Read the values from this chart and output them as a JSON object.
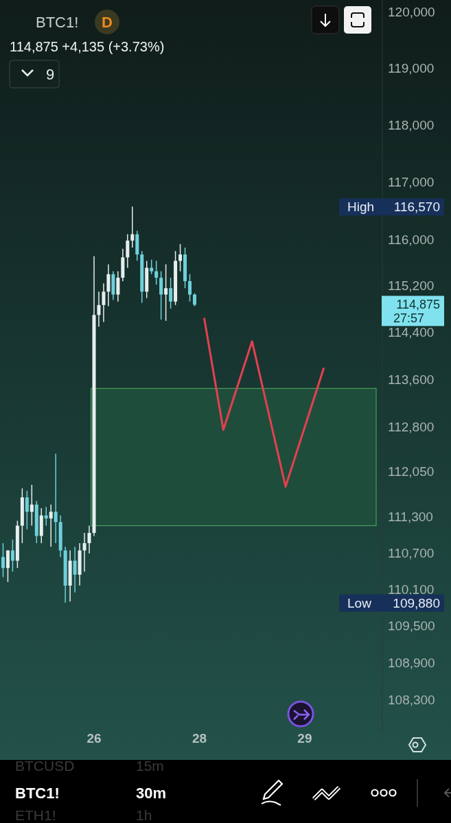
{
  "chart_data": {
    "type": "candlestick",
    "title": "BTC1!",
    "subtitle": "114,875 +4,135 (+3.73%)",
    "categories": [
      null,
      null,
      null,
      null,
      null,
      null,
      null,
      null,
      null,
      null,
      null,
      null,
      null,
      null,
      null,
      null,
      null,
      null,
      null,
      "26",
      null,
      null,
      null,
      null,
      null,
      null,
      null,
      null,
      null,
      null,
      null,
      null,
      null,
      null,
      null,
      null,
      null,
      null,
      null,
      null,
      null,
      "28",
      null,
      null,
      null,
      null,
      null,
      null,
      null,
      null,
      null,
      null,
      null,
      null,
      null,
      null,
      null,
      null,
      null,
      null,
      null,
      null,
      null,
      "29",
      null,
      null,
      null,
      null,
      null,
      null,
      null,
      null,
      null,
      null,
      null,
      null,
      null,
      null,
      null,
      null
    ],
    "ohlc": [
      [
        110630,
        110860,
        110300,
        110450
      ],
      [
        110450,
        110740,
        110220,
        110740
      ],
      [
        110740,
        110920,
        110390,
        110570
      ],
      [
        110570,
        111230,
        110450,
        111150
      ],
      [
        111150,
        111770,
        110860,
        111620
      ],
      [
        111620,
        111730,
        111090,
        111380
      ],
      [
        111380,
        111830,
        111150,
        111500
      ],
      [
        111500,
        111560,
        110860,
        110980
      ],
      [
        110980,
        111440,
        110860,
        111320
      ],
      [
        111320,
        111460,
        111150,
        111270
      ],
      [
        111270,
        111500,
        110800,
        111380
      ],
      [
        111380,
        112350,
        110860,
        111210
      ],
      [
        111210,
        111320,
        110630,
        110740
      ],
      [
        110740,
        110800,
        109880,
        110160
      ],
      [
        110160,
        110740,
        109900,
        110570
      ],
      [
        110570,
        110800,
        110050,
        110340
      ],
      [
        110340,
        110860,
        110160,
        110740
      ],
      [
        110740,
        111030,
        110390,
        110860
      ],
      [
        110860,
        111150,
        110690,
        111030
      ],
      [
        111030,
        115710,
        110980,
        114700
      ],
      [
        114700,
        115100,
        114500,
        114870
      ],
      [
        114870,
        115240,
        114580,
        115100
      ],
      [
        115100,
        115570,
        114850,
        115400
      ],
      [
        115400,
        115450,
        114960,
        115050
      ],
      [
        115050,
        115450,
        114930,
        115340
      ],
      [
        115340,
        115840,
        115280,
        115690
      ],
      [
        115690,
        116090,
        115510,
        115980
      ],
      [
        115980,
        116570,
        115860,
        116090
      ],
      [
        116090,
        116150,
        115630,
        115740
      ],
      [
        115740,
        115800,
        114910,
        115100
      ],
      [
        115100,
        115630,
        114990,
        115510
      ],
      [
        115510,
        115650,
        115400,
        115450
      ],
      [
        115450,
        115630,
        115220,
        115340
      ],
      [
        115340,
        115450,
        114620,
        115050
      ],
      [
        115050,
        115570,
        114600,
        115160
      ],
      [
        115160,
        115340,
        114810,
        114930
      ],
      [
        114930,
        115800,
        114870,
        115630
      ],
      [
        115630,
        115920,
        115450,
        115740
      ],
      [
        115740,
        115860,
        115160,
        115280
      ],
      [
        115280,
        115400,
        114930,
        115050
      ],
      [
        115050,
        115070,
        114850,
        114875
      ],
      null,
      null,
      null,
      null,
      null,
      null,
      null,
      null,
      null,
      null,
      null,
      null,
      null,
      null,
      null,
      null,
      null,
      null,
      null,
      null,
      null,
      null,
      null,
      null,
      null,
      null,
      null,
      null,
      null,
      null,
      null,
      null,
      null,
      null,
      null,
      null,
      null,
      null,
      null
    ],
    "colors": [
      "#6fd0dc",
      "#e6eeee",
      "#6fd0dc",
      "#e6eeee",
      "#e6eeee",
      "#6fd0dc",
      "#e6eeee",
      "#6fd0dc",
      "#e6eeee",
      "#6fd0dc",
      "#e6eeee",
      "#6fd0dc",
      "#6fd0dc",
      "#6fd0dc",
      "#e6eeee",
      "#6fd0dc",
      "#e6eeee",
      "#e6eeee",
      "#e6eeee",
      "#e6eeee",
      "#e6eeee",
      "#e6eeee",
      "#e6eeee",
      "#6fd0dc",
      "#e6eeee",
      "#e6eeee",
      "#e6eeee",
      "#e6eeee",
      "#6fd0dc",
      "#6fd0dc",
      "#e6eeee",
      "#6fd0dc",
      "#6fd0dc",
      "#6fd0dc",
      "#e6eeee",
      "#6fd0dc",
      "#e6eeee",
      "#e6eeee",
      "#6fd0dc",
      "#6fd0dc",
      "#6fd0dc",
      null,
      null,
      null,
      null,
      null,
      null,
      null,
      null,
      null,
      null,
      null,
      null,
      null,
      null,
      null,
      null,
      null,
      null,
      null,
      null,
      null,
      null,
      null,
      null,
      null,
      null,
      null,
      null,
      null,
      null,
      null,
      null,
      null,
      null,
      null,
      null,
      null,
      null,
      null
    ],
    "series": [
      {
        "type": "line",
        "color": "#e3414f",
        "values": [
          null,
          null,
          null,
          null,
          null,
          null,
          null,
          null,
          null,
          null,
          null,
          null,
          null,
          null,
          null,
          null,
          null,
          null,
          null,
          null,
          null,
          null,
          null,
          null,
          null,
          null,
          null,
          null,
          null,
          null,
          null,
          null,
          null,
          null,
          null,
          null,
          null,
          null,
          null,
          null,
          null,
          null,
          114650,
          null,
          null,
          null,
          112750,
          null,
          null,
          null,
          null,
          null,
          114250,
          null,
          null,
          null,
          null,
          null,
          null,
          111800,
          null,
          null,
          null,
          null,
          null,
          null,
          null,
          113800,
          null,
          null,
          null,
          null,
          null,
          null,
          null,
          null,
          null,
          null,
          null,
          null
        ]
      }
    ],
    "line_style": "solid",
    "marker": "none",
    "log": "y",
    "grid": false,
    "ylim": [
      107750,
      120220
    ],
    "yticks": [
      {
        "value": 108300,
        "label": "108,300"
      },
      {
        "value": 108900,
        "label": "108,900"
      },
      {
        "value": 109500,
        "label": "109,500"
      },
      {
        "value": 110100,
        "label": "110,100"
      },
      {
        "value": 110700,
        "label": "110,700"
      },
      {
        "value": 111300,
        "label": "111,300"
      },
      {
        "value": 112050,
        "label": "112,050"
      },
      {
        "value": 112800,
        "label": "112,800"
      },
      {
        "value": 113600,
        "label": "113,600"
      },
      {
        "value": 114400,
        "label": "114,400"
      },
      {
        "value": 115200,
        "label": "115,200"
      },
      {
        "value": 116000,
        "label": "116,000"
      },
      {
        "value": 117000,
        "label": "117,000"
      },
      {
        "value": 118000,
        "label": "118,000"
      },
      {
        "value": 119000,
        "label": "119,000"
      },
      {
        "value": 120000,
        "label": "120,000"
      }
    ],
    "bands": [
      {
        "axis": "y",
        "from": 111150,
        "to": 113450,
        "color": "#1f4d3c"
      }
    ],
    "annotations": [
      "D",
      "9",
      "BTCUSD",
      "15m",
      "BTC1!",
      "30m",
      "ETH1!",
      "1h",
      "High",
      "116,570",
      "Low",
      "109,880",
      "114,875",
      "27:57"
    ]
  }
}
